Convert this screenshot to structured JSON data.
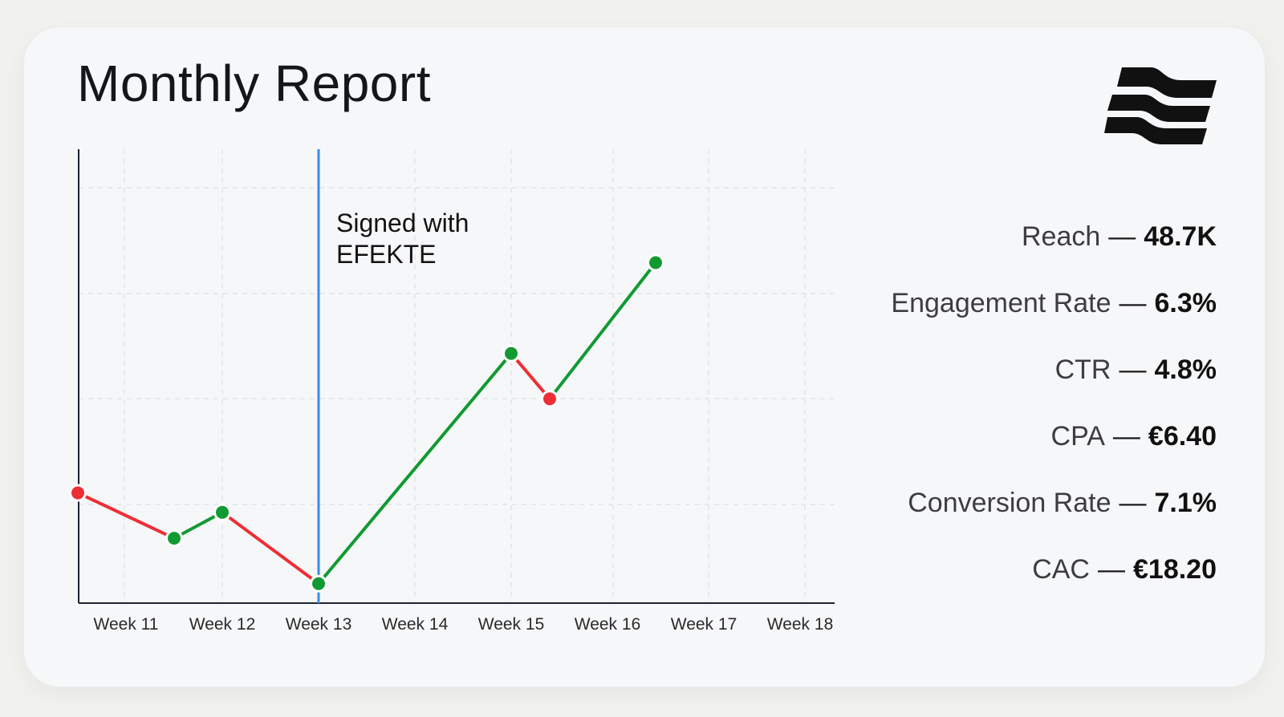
{
  "report": {
    "title": "Monthly Report",
    "annotation_lines": [
      "Signed with",
      "EFEKTE"
    ]
  },
  "metrics": [
    {
      "label": "Reach",
      "separator": "—",
      "value": "48.7K"
    },
    {
      "label": "Engagement Rate",
      "separator": "—",
      "value": "6.3%"
    },
    {
      "label": "CTR",
      "separator": "—",
      "value": "4.8%"
    },
    {
      "label": "CPA",
      "separator": "—",
      "value": "€6.40"
    },
    {
      "label": "Conversion Rate",
      "separator": "—",
      "value": "7.1%"
    },
    {
      "label": "CAC",
      "separator": "—",
      "value": "€18.20"
    }
  ],
  "colors": {
    "up": "#119a32",
    "down": "#ee2e35",
    "marker_line": "#3b8beb",
    "axis": "#1c2430",
    "grid": "#dcdfe4"
  },
  "chart_data": {
    "type": "line",
    "title": "Monthly Report",
    "xlabel": "",
    "ylabel": "",
    "categories": [
      "Week 11",
      "Week 12",
      "Week 13",
      "Week 14",
      "Week 15",
      "Week 16",
      "Week 17",
      "Week 18"
    ],
    "points": [
      {
        "x": 10.5,
        "y": 3.4,
        "status": "down"
      },
      {
        "x": 11.5,
        "y": 2.0,
        "status": "up"
      },
      {
        "x": 12.0,
        "y": 2.8,
        "status": "up"
      },
      {
        "x": 13.0,
        "y": 0.6,
        "status": "up"
      },
      {
        "x": 15.0,
        "y": 7.7,
        "status": "up"
      },
      {
        "x": 15.4,
        "y": 6.3,
        "status": "down"
      },
      {
        "x": 16.5,
        "y": 10.5,
        "status": "up"
      }
    ],
    "annotation": {
      "x": 13.0,
      "label": "Signed with EFEKTE"
    },
    "xlim": [
      10.5,
      18.5
    ],
    "ylim": [
      0,
      14
    ],
    "grid": true,
    "legend": "none"
  }
}
